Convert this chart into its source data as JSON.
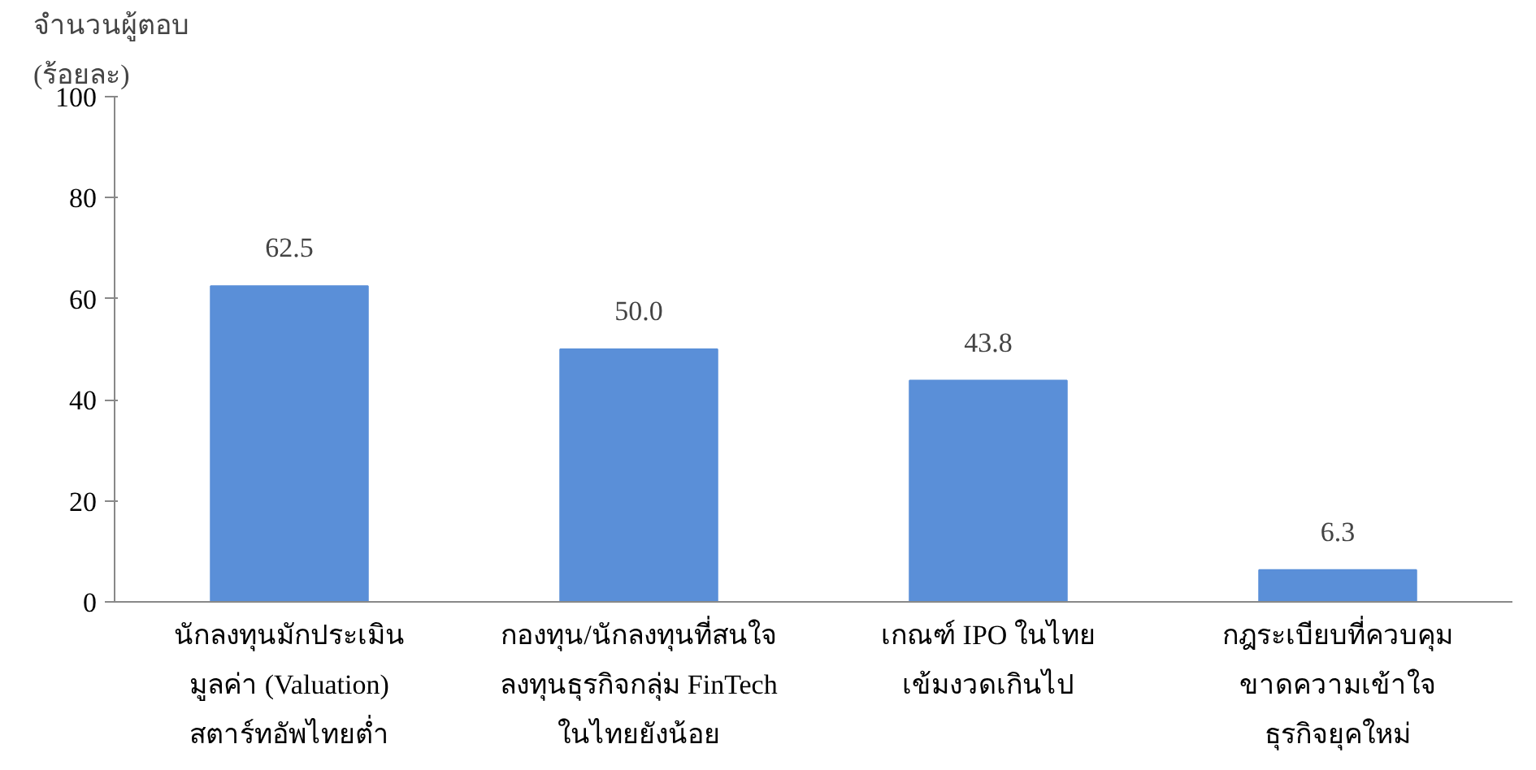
{
  "chart_data": {
    "type": "bar",
    "ylabel": "จำนวนผู้ตอบ\n(ร้อยละ)",
    "categories": [
      "นักลงทุนมักประเมิน\nมูลค่า (Valuation)\nสตาร์ทอัพไทยต่ำ",
      "กองทุน/นักลงทุนที่สนใจ\nลงทุนธุรกิจกลุ่ม FinTech\nในไทยยังน้อย",
      "เกณฑ์ IPO ในไทย\nเข้มงวดเกินไป",
      "กฎระเบียบที่ควบคุม\nขาดความเข้าใจ\nธุรกิจยุคใหม่"
    ],
    "values": [
      62.5,
      50.0,
      43.8,
      6.3
    ],
    "value_labels": [
      "62.5",
      "50.0",
      "43.8",
      "6.3"
    ],
    "color": "#5a8fd8",
    "ylim": [
      0,
      100
    ],
    "yticks": [
      0,
      20,
      40,
      60,
      80,
      100
    ],
    "grid": false,
    "legend": false
  }
}
